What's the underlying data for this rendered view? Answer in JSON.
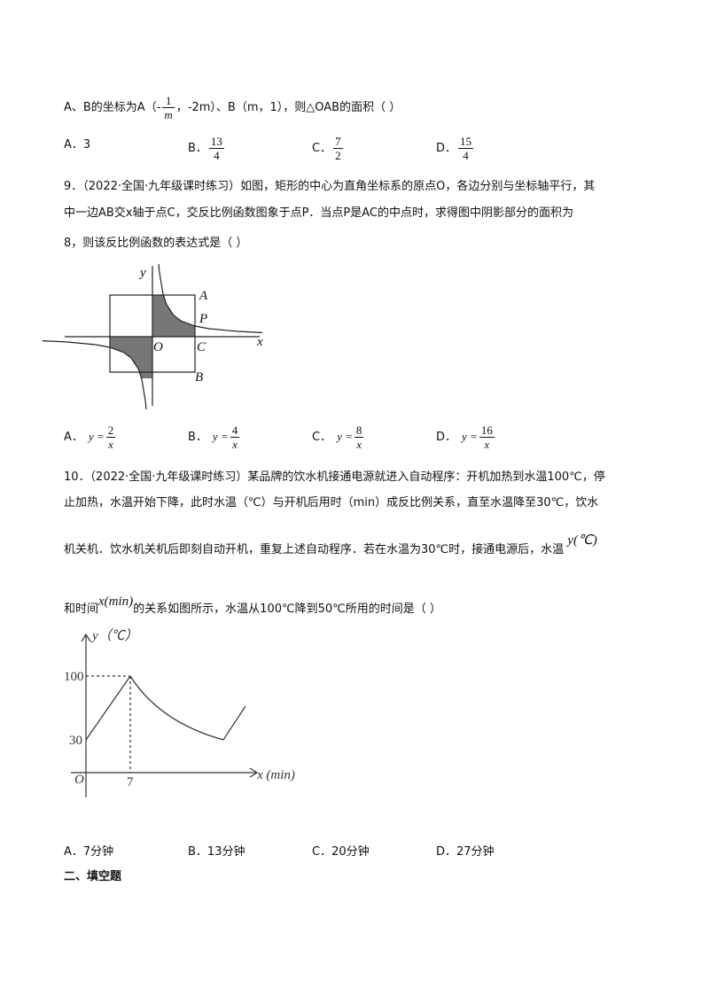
{
  "q8": {
    "prefix": "A、B的坐标为A（-",
    "num": "1",
    "den": "m",
    "suffix": "，-2m）、B（m，1），则△OAB的面积（    ）",
    "options": [
      {
        "label": "A．",
        "text": "3"
      },
      {
        "label": "B．",
        "num": "13",
        "den": "4"
      },
      {
        "label": "C．",
        "num": "7",
        "den": "2"
      },
      {
        "label": "D．",
        "num": "15",
        "den": "4"
      }
    ]
  },
  "q9": {
    "lines": [
      "9．（2022·全国·九年级课时练习）如图，矩形的中心为直角坐标系的原点O，各边分别与坐标轴平行，其",
      "中一边AB交x轴于点C，交反比例函数图象于点P．当点P是AC的中点时，求得图中阴影部分的面积为",
      "8，则该反比例函数的表达式是（    ）"
    ],
    "figure": {
      "y": "y",
      "A": "A",
      "P": "P",
      "O": "O",
      "C": "C",
      "x": "x",
      "B": "B"
    },
    "options": [
      {
        "label": "A．",
        "lhs": "y =",
        "num": "2",
        "den": "x"
      },
      {
        "label": "B．",
        "lhs": "y =",
        "num": "4",
        "den": "x"
      },
      {
        "label": "C．",
        "lhs": "y =",
        "num": "8",
        "den": "x"
      },
      {
        "label": "D．",
        "lhs": "y =",
        "num": "16",
        "den": "x"
      }
    ]
  },
  "q10": {
    "lines": [
      "10．（2022·全国·九年级课时练习）某品牌的饮水机接通电源就进入自动程序：开机加热到水温100℃，停",
      "止加热，水温开始下降，此时水温（℃）与开机后用时（min）成反比例关系，直至水温降至30℃，饮水",
      "机关机．饮水机关机后即刻自动开机，重复上述自动程序．若在水温为30℃时，接通电源后，水温"
    ],
    "math_y": "y(℃)",
    "line4_prefix": "和时间",
    "math_x": "x(min)",
    "line4_suffix": "的关系如图所示，水温从100℃降到50℃所用的时间是（    ）",
    "figure": {
      "y_label": "y（℃）",
      "y_100": "100",
      "y_30": "30",
      "origin": "O",
      "x_7": "7",
      "x_label": "x (min)"
    },
    "options": [
      {
        "label": "A．",
        "text": "7分钟"
      },
      {
        "label": "B．",
        "text": "13分钟"
      },
      {
        "label": "C．",
        "text": "20分钟"
      },
      {
        "label": "D．",
        "text": "27分钟"
      }
    ]
  },
  "section": "二、填空题"
}
